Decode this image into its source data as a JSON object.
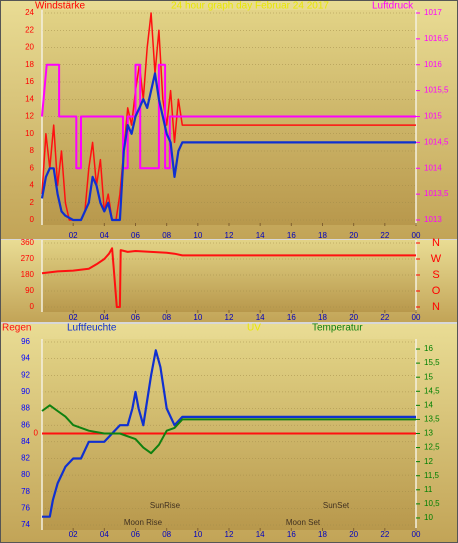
{
  "chart_data": [
    {
      "type": "line",
      "title": "24 hour graph day   Februar 24 2017",
      "ylabel": "Windstärke",
      "y2label": "Luftdruck",
      "title_color": "#e8e800",
      "ylabel_color": "#ff0000",
      "y2label_color": "#ff00ff",
      "ytick_color": "#ff0000",
      "y2tick_color": "#ff00ff",
      "xtick_color": "#0000c0",
      "grid": true,
      "xlim": [
        0,
        24
      ],
      "xticks": [
        {
          "value": 2,
          "label": "02"
        },
        {
          "value": 4,
          "label": "04"
        },
        {
          "value": 6,
          "label": "06"
        },
        {
          "value": 8,
          "label": "08"
        },
        10,
        12,
        14,
        16,
        18,
        20,
        22,
        {
          "value": 24,
          "label": "00"
        }
      ],
      "ylim": [
        0,
        24
      ],
      "yticks": [
        0,
        2,
        4,
        6,
        8,
        10,
        12,
        14,
        16,
        18,
        20,
        22,
        24
      ],
      "y2lim": [
        1013,
        1017
      ],
      "y2ticks": [
        1013,
        {
          "value": 1013.5,
          "label": "1013,5"
        },
        1014,
        {
          "value": 1014.5,
          "label": "1014,5"
        },
        1015,
        {
          "value": 1015.5,
          "label": "1015,5"
        },
        1016,
        {
          "value": 1016.5,
          "label": "1016,5"
        },
        1017
      ],
      "series": [
        {
          "color": "#ff1010",
          "width": 1.5,
          "x": [
            0,
            0.25,
            0.5,
            0.75,
            1,
            1.25,
            1.5,
            1.75,
            2,
            2.25,
            2.5,
            2.75,
            3,
            3.25,
            3.5,
            3.75,
            4,
            4.25,
            4.5,
            4.75,
            5,
            5.25,
            5.5,
            5.75,
            6,
            6.25,
            6.5,
            6.75,
            7,
            7.25,
            7.5,
            7.75,
            8,
            8.25,
            8.5,
            8.75,
            9,
            24
          ],
          "values": [
            3,
            10,
            6,
            11,
            4,
            8,
            2,
            0,
            0,
            0,
            0,
            1,
            6,
            9,
            4,
            7,
            1,
            3,
            0,
            0,
            3,
            8,
            13,
            11,
            15,
            18,
            14,
            20,
            24,
            17,
            22,
            14,
            11,
            15,
            9,
            14,
            11,
            11
          ]
        },
        {
          "color": "#ff00ff",
          "width": 2,
          "axis": "y2",
          "x": [
            0,
            0.3,
            1.1,
            1.1,
            2.2,
            2.2,
            2.5,
            2.5,
            5.2,
            5.2,
            5.5,
            5.5,
            6,
            6,
            6.3,
            6.3,
            7.5,
            7.5,
            7.9,
            7.9,
            8.2,
            8.2,
            24
          ],
          "values": [
            1015,
            1016,
            1016,
            1015,
            1015,
            1014,
            1014,
            1015,
            1015,
            1014,
            1014,
            1015,
            1015,
            1016,
            1016,
            1014,
            1014,
            1016,
            1016,
            1014,
            1014,
            1015,
            1015
          ]
        },
        {
          "color": "#1030d0",
          "width": 2.2,
          "x": [
            0,
            0.25,
            0.5,
            0.75,
            1,
            1.25,
            1.5,
            2,
            2.5,
            3,
            3.25,
            3.5,
            3.75,
            4,
            4.25,
            4.5,
            5,
            5.25,
            5.5,
            5.75,
            6,
            6.25,
            6.5,
            6.75,
            7,
            7.25,
            7.5,
            7.75,
            8,
            8.25,
            8.5,
            8.75,
            9,
            24
          ],
          "values": [
            2.5,
            5,
            6,
            6,
            3,
            1,
            0.5,
            0,
            0,
            2,
            5,
            4,
            2,
            1,
            2,
            0,
            0,
            8,
            11,
            10,
            12,
            13,
            14,
            13,
            15,
            17,
            14,
            12,
            10,
            9,
            5,
            8,
            9,
            9
          ]
        }
      ]
    },
    {
      "type": "line",
      "ytick_color": "#ff0000",
      "y2tick_color": "#ff0000",
      "xtick_color": "#0000c0",
      "grid": true,
      "xlim": [
        0,
        24
      ],
      "xticks": [
        {
          "value": 2,
          "label": "02"
        },
        {
          "value": 4,
          "label": "04"
        },
        {
          "value": 6,
          "label": "06"
        },
        {
          "value": 8,
          "label": "08"
        },
        10,
        12,
        14,
        16,
        18,
        20,
        22,
        {
          "value": 24,
          "label": "00"
        }
      ],
      "ylim": [
        0,
        360
      ],
      "yticks": [
        0,
        90,
        180,
        270,
        360
      ],
      "y2lim": [
        0,
        360
      ],
      "y2ticks": [
        {
          "value": 360,
          "label": "N"
        },
        {
          "value": 270,
          "label": "W"
        },
        {
          "value": 180,
          "label": "S"
        },
        {
          "value": 90,
          "label": "O"
        },
        {
          "value": 0,
          "label": "N"
        }
      ],
      "series": [
        {
          "color": "#ff1010",
          "width": 2,
          "x": [
            0,
            1,
            2,
            3,
            3.5,
            4,
            4.3,
            4.5,
            4.6,
            4.8,
            5,
            5.05,
            5.5,
            6,
            7,
            8,
            8.5,
            9,
            24
          ],
          "values": [
            190,
            200,
            205,
            215,
            240,
            270,
            300,
            330,
            220,
            0,
            0,
            320,
            310,
            315,
            310,
            305,
            300,
            290,
            290
          ]
        }
      ]
    },
    {
      "type": "line",
      "uv_label": "UV",
      "uv_color": "#e8e800",
      "ytick_color": "#0000ff",
      "y2tick_color": "#008000",
      "y3tick_color": "#ff0000",
      "xtick_color": "#0000c0",
      "grid": true,
      "xlim": [
        0,
        24
      ],
      "xticks": [
        {
          "value": 2,
          "label": "02"
        },
        {
          "value": 4,
          "label": "04"
        },
        {
          "value": 6,
          "label": "06"
        },
        {
          "value": 8,
          "label": "08"
        },
        10,
        12,
        14,
        16,
        18,
        20,
        22,
        {
          "value": 24,
          "label": "00"
        }
      ],
      "ylim": [
        74,
        96
      ],
      "yticks": [
        74,
        76,
        78,
        80,
        82,
        84,
        86,
        88,
        90,
        92,
        94,
        96
      ],
      "y2lim": [
        9.75,
        16.25
      ],
      "y2ticks": [
        10,
        {
          "value": 10.5,
          "label": "10,5"
        },
        11,
        {
          "value": 11.5,
          "label": "11,5"
        },
        12,
        {
          "value": 12.5,
          "label": "12,5"
        },
        13,
        {
          "value": 13.5,
          "label": "13,5"
        },
        14,
        {
          "value": 14.5,
          "label": "14,5"
        },
        15,
        {
          "value": 15.5,
          "label": "15,5"
        },
        16
      ],
      "y3lim": [
        -1,
        1
      ],
      "y3ticks": [
        0
      ],
      "annotations": [
        "SunRise",
        "Moon Rise",
        "SunSet",
        "Moon Set"
      ],
      "series": [
        {
          "name": "Regen",
          "color": "#ff1010",
          "width": 2,
          "axis": "y3",
          "x": [
            0,
            24
          ],
          "values": [
            0,
            0
          ]
        },
        {
          "name": "Luftfeuchte",
          "color": "#1030d0",
          "width": 2.2,
          "x": [
            0,
            0.5,
            0.7,
            1,
            1.5,
            2,
            2.5,
            3,
            4,
            4.5,
            5,
            5.5,
            5.8,
            6,
            6.2,
            6.5,
            7,
            7.3,
            7.6,
            8,
            8.5,
            9,
            24
          ],
          "values": [
            75,
            75,
            77,
            79,
            81,
            82,
            82,
            84,
            84,
            85,
            86,
            86,
            88,
            90,
            88,
            86,
            92,
            95,
            93,
            88,
            86,
            87,
            87
          ]
        },
        {
          "name": "Temperatur",
          "color": "#108010",
          "width": 2,
          "axis": "y2",
          "x": [
            0,
            0.5,
            1,
            1.5,
            2,
            3,
            4,
            5,
            6,
            6.5,
            7,
            7.5,
            8,
            8.5,
            9,
            24
          ],
          "values": [
            13.8,
            14,
            13.8,
            13.6,
            13.3,
            13.1,
            13,
            13,
            12.8,
            12.5,
            12.3,
            12.6,
            13.1,
            13.2,
            13.5,
            13.5
          ]
        }
      ]
    }
  ]
}
